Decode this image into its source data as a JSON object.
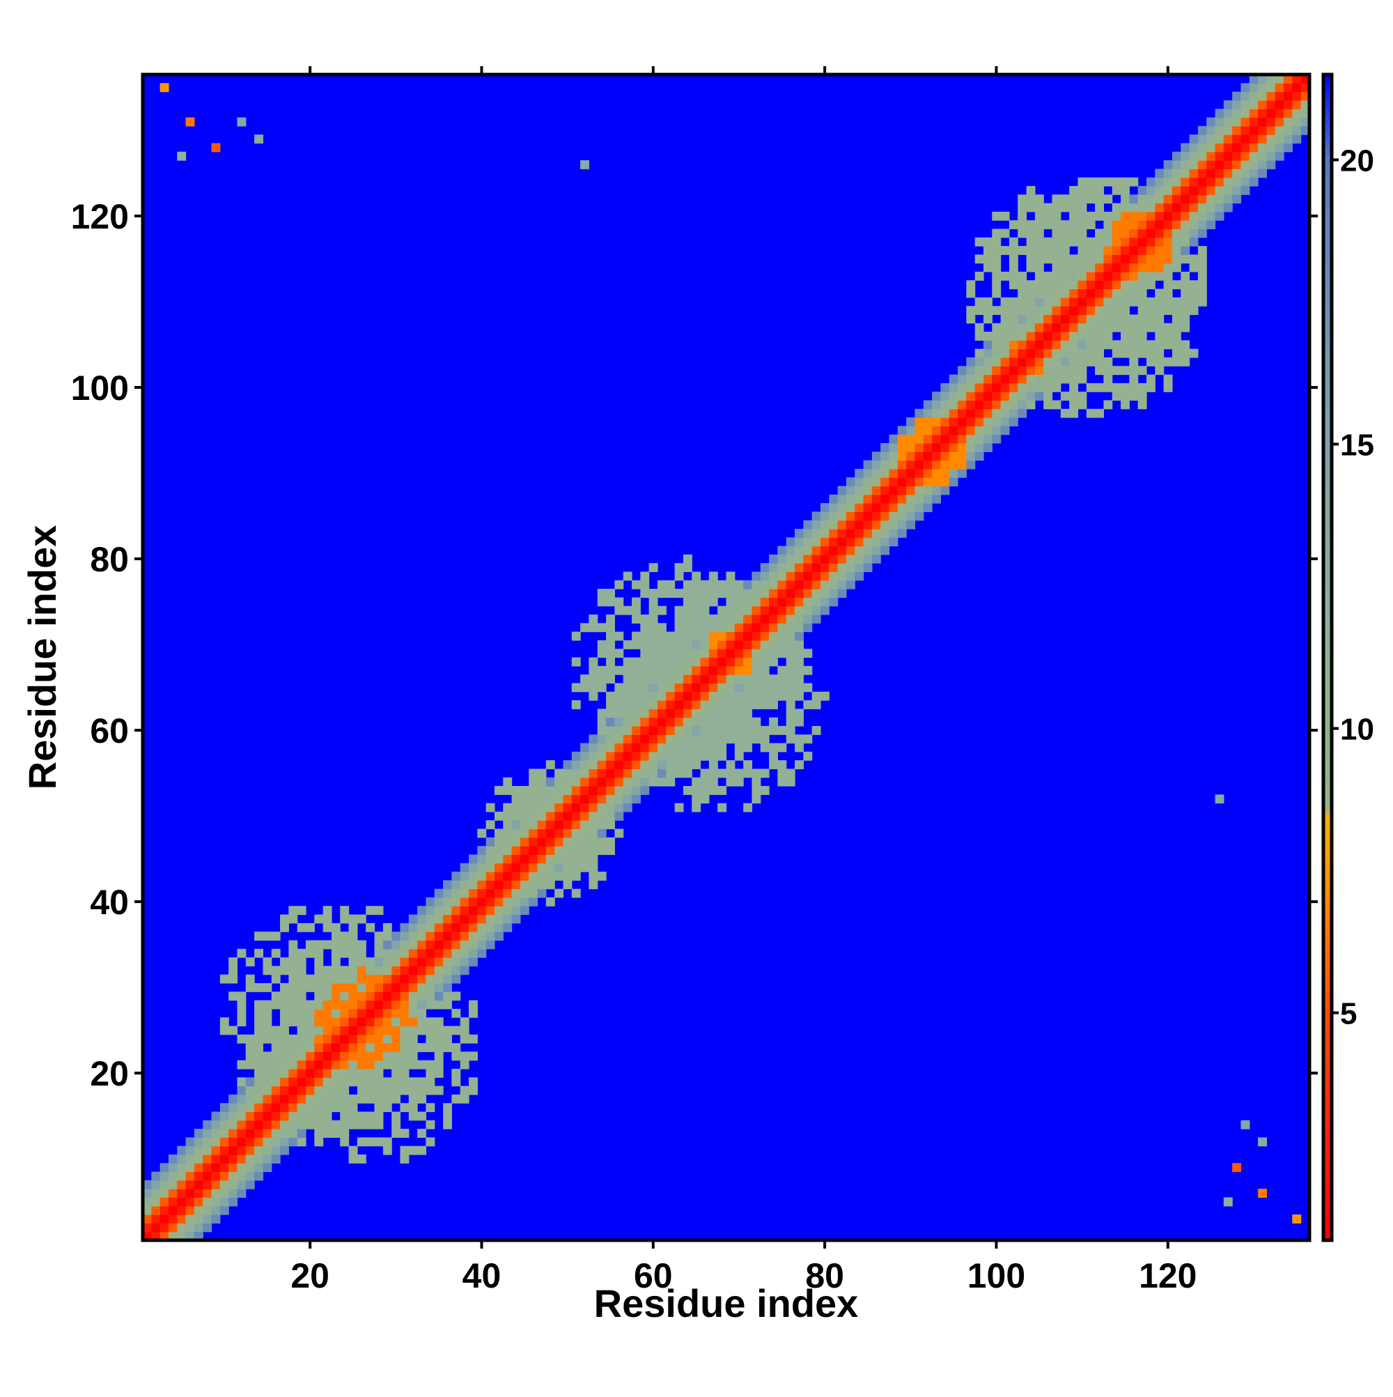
{
  "chart_data": {
    "type": "heatmap",
    "title": "",
    "xlabel": "Residue index",
    "ylabel": "Residue index",
    "n_residues": 136,
    "xlim": [
      0.5,
      136.5
    ],
    "ylim": [
      0.5,
      136.5
    ],
    "x_ticks": [
      20,
      40,
      60,
      80,
      100,
      120
    ],
    "y_ticks": [
      20,
      40,
      60,
      80,
      100,
      120
    ],
    "x_tick_labels": [
      "20",
      "40",
      "60",
      "80",
      "100",
      "120"
    ],
    "y_tick_labels": [
      "20",
      "40",
      "60",
      "80",
      "100",
      "120"
    ],
    "colorbar": {
      "range": [
        1,
        21.5
      ],
      "ticks": [
        5,
        10,
        15,
        20
      ],
      "tick_labels": [
        "5",
        "10",
        "15",
        "20"
      ],
      "stops": [
        {
          "value": 1.0,
          "color": "#ff0000"
        },
        {
          "value": 5.0,
          "color": "#ff4a00"
        },
        {
          "value": 7.0,
          "color": "#ff8a00"
        },
        {
          "value": 8.4,
          "color": "#ffb000"
        },
        {
          "value": 8.6,
          "color": "#9ab286"
        },
        {
          "value": 12.0,
          "color": "#8fb09a"
        },
        {
          "value": 16.0,
          "color": "#7b9db0"
        },
        {
          "value": 20.0,
          "color": "#5878c0"
        },
        {
          "value": 21.0,
          "color": "#1530f0"
        },
        {
          "value": 21.5,
          "color": "#0000ff"
        }
      ]
    },
    "background_value": 21.5,
    "diagonal_band": [
      {
        "offset": 0,
        "value": 1.0
      },
      {
        "offset": 1,
        "value": 2.5
      },
      {
        "offset": 2,
        "value": 5.5
      },
      {
        "offset": 3,
        "value": 9.0
      },
      {
        "offset": 4,
        "value": 11.0
      },
      {
        "offset": 5,
        "value": 14.5
      },
      {
        "offset": 6,
        "value": 18.0
      }
    ],
    "contact_patches": [
      {
        "x": [
          13,
          40
        ],
        "y": [
          9,
          37
        ],
        "value": 10.5
      },
      {
        "x": [
          20,
          32
        ],
        "y": [
          20,
          32
        ],
        "value": 6.5
      },
      {
        "x": [
          40,
          56
        ],
        "y": [
          40,
          56
        ],
        "value": 10.5
      },
      {
        "x": [
          55,
          80
        ],
        "y": [
          50,
          78
        ],
        "value": 11.5
      },
      {
        "x": [
          66,
          73
        ],
        "y": [
          66,
          73
        ],
        "value": 7.0
      },
      {
        "x": [
          88,
          97
        ],
        "y": [
          88,
          97
        ],
        "value": 7.0
      },
      {
        "x": [
          96,
          125
        ],
        "y": [
          97,
          125
        ],
        "value": 10.5
      },
      {
        "x": [
          101,
          106
        ],
        "y": [
          101,
          106
        ],
        "value": 6.5
      },
      {
        "x": [
          113,
          120
        ],
        "y": [
          112,
          121
        ],
        "value": 6.5
      }
    ],
    "isolated_contacts": [
      {
        "x": 3,
        "y": 135,
        "value": 7.5
      },
      {
        "x": 6,
        "y": 131,
        "value": 6.5
      },
      {
        "x": 9,
        "y": 128,
        "value": 5.5
      },
      {
        "x": 5,
        "y": 127,
        "value": 12.0
      },
      {
        "x": 12,
        "y": 131,
        "value": 14.0
      },
      {
        "x": 14,
        "y": 129,
        "value": 13.0
      },
      {
        "x": 52,
        "y": 126,
        "value": 13.0
      },
      {
        "x": 126,
        "y": 52,
        "value": 13.0
      },
      {
        "x": 135,
        "y": 3,
        "value": 7.5
      },
      {
        "x": 131,
        "y": 6,
        "value": 6.5
      },
      {
        "x": 128,
        "y": 9,
        "value": 5.5
      },
      {
        "x": 127,
        "y": 5,
        "value": 12.0
      },
      {
        "x": 129,
        "y": 14,
        "value": 14.0
      },
      {
        "x": 131,
        "y": 12,
        "value": 13.0
      }
    ]
  }
}
